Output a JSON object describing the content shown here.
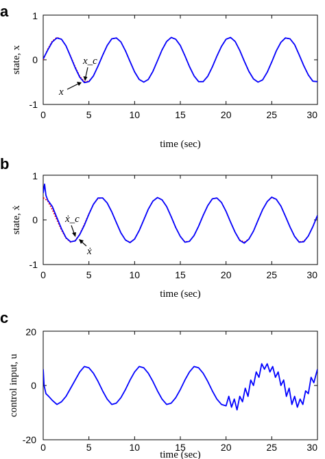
{
  "colors": {
    "target": "#ff0000",
    "actual": "#0000ff",
    "frame": "#000000"
  },
  "chart_data": [
    {
      "panel_label": "a",
      "type": "line",
      "xlabel": "time (sec)",
      "ylabel": "state, x",
      "xlim": [
        0,
        30
      ],
      "ylim": [
        -1,
        1
      ],
      "xticks": [
        "0",
        "5",
        "10",
        "15",
        "20",
        "25",
        "30"
      ],
      "yticks": [
        "-1",
        "0",
        "1"
      ],
      "annotations": [
        "x_c",
        "x"
      ],
      "series": [
        {
          "color": "red",
          "style": "dashed",
          "x": [
            0,
            0.5,
            1,
            1.5,
            2,
            2.5,
            3,
            3.5,
            4,
            4.5,
            5,
            5.5,
            6,
            6.5,
            7,
            7.5,
            8,
            8.5,
            9,
            9.5,
            10,
            10.5,
            11,
            11.5,
            12,
            12.5,
            13,
            13.5,
            14,
            14.5,
            15,
            15.5,
            16,
            16.5,
            17,
            17.5,
            18,
            18.5,
            19,
            19.5,
            20,
            20.5,
            21,
            21.5,
            22,
            22.5,
            23,
            23.5,
            24,
            24.5,
            25,
            25.5,
            26,
            26.5,
            27,
            27.5,
            28,
            28.5,
            29,
            29.5,
            30
          ],
          "y": [
            0.0,
            0.24,
            0.42,
            0.5,
            0.46,
            0.31,
            0.08,
            -0.16,
            -0.37,
            -0.49,
            -0.48,
            -0.36,
            -0.14,
            0.1,
            0.32,
            0.47,
            0.49,
            0.4,
            0.2,
            -0.04,
            -0.27,
            -0.44,
            -0.5,
            -0.44,
            -0.26,
            -0.02,
            0.22,
            0.41,
            0.5,
            0.46,
            0.32,
            0.09,
            -0.15,
            -0.36,
            -0.49,
            -0.49,
            -0.37,
            -0.16,
            0.08,
            0.3,
            0.46,
            0.5,
            0.41,
            0.21,
            -0.03,
            -0.26,
            -0.43,
            -0.5,
            -0.45,
            -0.28,
            -0.05,
            0.2,
            0.39,
            0.49,
            0.47,
            0.34,
            0.11,
            -0.13,
            -0.34,
            -0.48,
            -0.49
          ]
        },
        {
          "color": "blue",
          "style": "solid",
          "x": [
            0,
            0.5,
            1,
            1.5,
            2,
            2.5,
            3,
            3.5,
            4,
            4.5,
            5,
            5.5,
            6,
            6.5,
            7,
            7.5,
            8,
            8.5,
            9,
            9.5,
            10,
            10.5,
            11,
            11.5,
            12,
            12.5,
            13,
            13.5,
            14,
            14.5,
            15,
            15.5,
            16,
            16.5,
            17,
            17.5,
            18,
            18.5,
            19,
            19.5,
            20,
            20.5,
            21,
            21.5,
            22,
            22.5,
            23,
            23.5,
            24,
            24.5,
            25,
            25.5,
            26,
            26.5,
            27,
            27.5,
            28,
            28.5,
            29,
            29.5,
            30
          ],
          "y": [
            0.02,
            0.22,
            0.4,
            0.49,
            0.46,
            0.31,
            0.07,
            -0.18,
            -0.39,
            -0.51,
            -0.49,
            -0.36,
            -0.14,
            0.1,
            0.32,
            0.47,
            0.49,
            0.4,
            0.2,
            -0.04,
            -0.27,
            -0.44,
            -0.5,
            -0.44,
            -0.26,
            -0.02,
            0.22,
            0.41,
            0.5,
            0.46,
            0.32,
            0.09,
            -0.15,
            -0.36,
            -0.49,
            -0.49,
            -0.37,
            -0.16,
            0.08,
            0.3,
            0.46,
            0.5,
            0.41,
            0.21,
            -0.03,
            -0.26,
            -0.43,
            -0.5,
            -0.45,
            -0.28,
            -0.05,
            0.2,
            0.39,
            0.49,
            0.47,
            0.34,
            0.11,
            -0.13,
            -0.34,
            -0.48,
            -0.49
          ]
        }
      ]
    },
    {
      "panel_label": "b",
      "type": "line",
      "xlabel": "time (sec)",
      "ylabel": "state, ẋ",
      "xlim": [
        0,
        30
      ],
      "ylim": [
        -1,
        1
      ],
      "xticks": [
        "0",
        "5",
        "10",
        "15",
        "20",
        "25",
        "30"
      ],
      "yticks": [
        "-1",
        "0",
        "1"
      ],
      "annotations": [
        "ẋ_c",
        "ẋ"
      ],
      "series": [
        {
          "color": "red",
          "style": "dashed",
          "x": [
            0,
            0.5,
            1,
            1.5,
            2,
            2.5,
            3,
            3.5,
            4,
            4.5,
            5,
            5.5,
            6,
            6.5,
            7,
            7.5,
            8,
            8.5,
            9,
            9.5,
            10,
            10.5,
            11,
            11.5,
            12,
            12.5,
            13,
            13.5,
            14,
            14.5,
            15,
            15.5,
            16,
            16.5,
            17,
            17.5,
            18,
            18.5,
            19,
            19.5,
            20,
            20.5,
            21,
            21.5,
            22,
            22.5,
            23,
            23.5,
            24,
            24.5,
            25,
            25.5,
            26,
            26.5,
            27,
            27.5,
            28,
            28.5,
            29,
            29.5,
            30
          ],
          "y": [
            0.5,
            0.42,
            0.23,
            0.0,
            -0.23,
            -0.41,
            -0.5,
            -0.46,
            -0.32,
            -0.1,
            0.14,
            0.35,
            0.48,
            0.49,
            0.38,
            0.18,
            -0.06,
            -0.29,
            -0.45,
            -0.5,
            -0.43,
            -0.24,
            0.0,
            0.24,
            0.42,
            0.5,
            0.45,
            0.3,
            0.07,
            -0.17,
            -0.37,
            -0.49,
            -0.48,
            -0.35,
            -0.14,
            0.1,
            0.32,
            0.47,
            0.49,
            0.39,
            0.19,
            -0.05,
            -0.28,
            -0.45,
            -0.5,
            -0.43,
            -0.25,
            -0.01,
            0.23,
            0.41,
            0.5,
            0.46,
            0.31,
            0.08,
            -0.16,
            -0.37,
            -0.49,
            -0.48,
            -0.36,
            -0.15,
            0.09
          ]
        },
        {
          "color": "blue",
          "style": "solid",
          "x": [
            0,
            0.15,
            0.3,
            0.5,
            1,
            1.5,
            2,
            2.5,
            3,
            3.5,
            4,
            4.5,
            5,
            5.5,
            6,
            6.5,
            7,
            7.5,
            8,
            8.5,
            9,
            9.5,
            10,
            10.5,
            11,
            11.5,
            12,
            12.5,
            13,
            13.5,
            14,
            14.5,
            15,
            15.5,
            16,
            16.5,
            17,
            17.5,
            18,
            18.5,
            19,
            19.5,
            20,
            20.5,
            21,
            21.5,
            22,
            22.5,
            23,
            23.5,
            24,
            24.5,
            25,
            25.5,
            26,
            26.5,
            27,
            27.5,
            28,
            28.5,
            29,
            29.5,
            30
          ],
          "y": [
            0.6,
            0.8,
            0.55,
            0.44,
            0.3,
            0.05,
            -0.2,
            -0.4,
            -0.49,
            -0.47,
            -0.33,
            -0.12,
            0.13,
            0.35,
            0.49,
            0.49,
            0.38,
            0.18,
            -0.06,
            -0.29,
            -0.45,
            -0.51,
            -0.43,
            -0.24,
            0.0,
            0.24,
            0.42,
            0.5,
            0.45,
            0.3,
            0.07,
            -0.17,
            -0.37,
            -0.5,
            -0.48,
            -0.35,
            -0.14,
            0.1,
            0.32,
            0.47,
            0.49,
            0.39,
            0.19,
            -0.05,
            -0.28,
            -0.46,
            -0.52,
            -0.43,
            -0.25,
            -0.01,
            0.23,
            0.41,
            0.51,
            0.46,
            0.31,
            0.08,
            -0.16,
            -0.37,
            -0.5,
            -0.49,
            -0.36,
            -0.15,
            0.1
          ]
        }
      ]
    },
    {
      "panel_label": "c",
      "type": "line",
      "xlabel": "time (sec)",
      "ylabel": "control input, u",
      "xlim": [
        0,
        30
      ],
      "ylim": [
        -20,
        20
      ],
      "xticks": [
        "0",
        "5",
        "10",
        "15",
        "20",
        "25",
        "30"
      ],
      "yticks": [
        "-20",
        "0",
        "20"
      ],
      "series": [
        {
          "color": "blue",
          "style": "solid",
          "x": [
            0,
            0.1,
            0.3,
            0.6,
            1,
            1.5,
            2,
            2.5,
            3,
            3.5,
            4,
            4.5,
            5,
            5.5,
            6,
            6.5,
            7,
            7.5,
            8,
            8.5,
            9,
            9.5,
            10,
            10.5,
            11,
            11.5,
            12,
            12.5,
            13,
            13.5,
            14,
            14.5,
            15,
            15.5,
            16,
            16.5,
            17,
            17.5,
            18,
            18.5,
            19,
            19.5,
            20,
            20.3,
            20.6,
            20.9,
            21.2,
            21.5,
            21.8,
            22.1,
            22.4,
            22.7,
            23,
            23.3,
            23.6,
            23.9,
            24.2,
            24.5,
            24.8,
            25.1,
            25.4,
            25.7,
            26,
            26.3,
            26.6,
            26.9,
            27.2,
            27.5,
            27.8,
            28.1,
            28.4,
            28.7,
            29,
            29.3,
            29.6,
            30
          ],
          "y": [
            6,
            0,
            -3,
            -4,
            -5.5,
            -7,
            -6,
            -4,
            -1,
            2,
            5,
            7,
            6.5,
            4.5,
            1.5,
            -2,
            -5,
            -7,
            -6.5,
            -4.5,
            -1.5,
            2,
            5,
            7,
            6.5,
            4.5,
            1.5,
            -2,
            -5,
            -7,
            -6.5,
            -4.5,
            -1.5,
            2,
            5,
            7,
            6.5,
            4.5,
            1.5,
            -2,
            -5,
            -7,
            -7.5,
            -4,
            -8,
            -5,
            -9,
            -4,
            -6,
            -1,
            -4,
            2,
            0,
            5,
            3,
            8,
            6,
            8,
            5,
            7,
            3,
            5,
            0,
            2,
            -4,
            -1,
            -7,
            -4,
            -8,
            -5,
            -7,
            -2,
            -3,
            3,
            1,
            6
          ]
        }
      ]
    }
  ]
}
